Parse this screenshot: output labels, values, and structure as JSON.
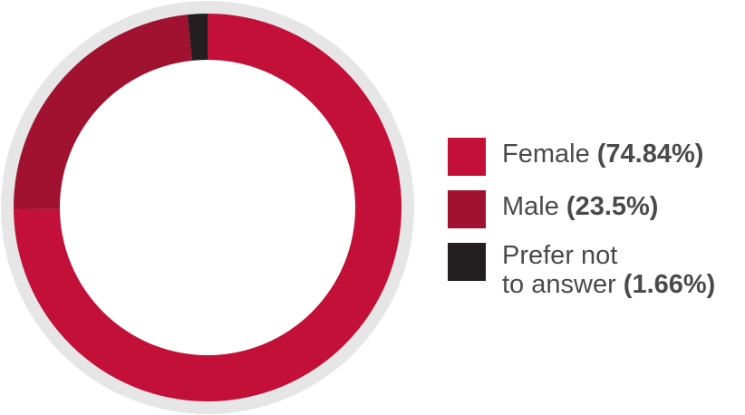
{
  "chart_data": {
    "type": "pie",
    "variant": "donut",
    "title": "",
    "categories": [
      "Female",
      "Male",
      "Prefer not to answer"
    ],
    "values": [
      74.84,
      23.5,
      1.66
    ],
    "unit": "%",
    "colors": [
      "#c21038",
      "#a0122f",
      "#231f20"
    ],
    "ring_background_color": "#e6e6e6",
    "legend_position": "right",
    "legend": [
      {
        "label": "Female",
        "value_text": "(74.84%)"
      },
      {
        "label": "Male",
        "value_text": "(23.5%)"
      },
      {
        "label_line1": "Prefer not",
        "label_line2": "to answer",
        "value_text": "(1.66%)"
      }
    ]
  }
}
